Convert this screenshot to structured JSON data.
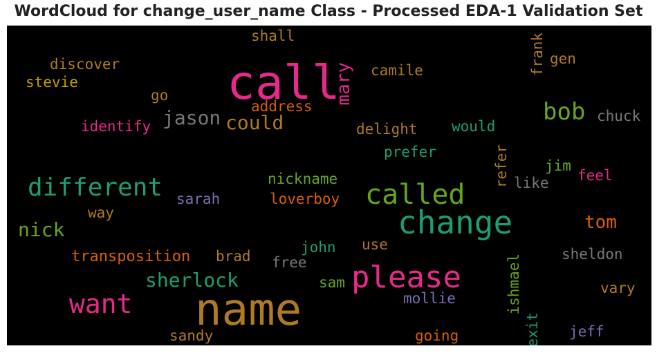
{
  "chart_data": {
    "type": "wordcloud",
    "title": "WordCloud for change_user_name Class - Processed EDA-1 Validation Set",
    "colors": {
      "background": "#000000",
      "pink": "#e7298a",
      "brown": "#b07a25",
      "green": "#1b9e77",
      "lime": "#66a61e",
      "orange": "#d95f02",
      "gray": "#777777",
      "purple": "#7570b3",
      "gold": "#c8a000"
    },
    "words": [
      {
        "text": "call",
        "color": "#e7298a",
        "orientation": "horizontal"
      },
      {
        "text": "name",
        "color": "#b07a25",
        "orientation": "horizontal"
      },
      {
        "text": "change",
        "color": "#1b9e77",
        "orientation": "horizontal"
      },
      {
        "text": "please",
        "color": "#e7298a",
        "orientation": "horizontal"
      },
      {
        "text": "called",
        "color": "#66a61e",
        "orientation": "horizontal"
      },
      {
        "text": "different",
        "color": "#1b9e77",
        "orientation": "horizontal"
      },
      {
        "text": "want",
        "color": "#e7298a",
        "orientation": "horizontal"
      },
      {
        "text": "bob",
        "color": "#66a61e",
        "orientation": "horizontal"
      },
      {
        "text": "jason",
        "color": "#777777",
        "orientation": "horizontal"
      },
      {
        "text": "sherlock",
        "color": "#1b9e77",
        "orientation": "horizontal"
      },
      {
        "text": "could",
        "color": "#b07a25",
        "orientation": "horizontal"
      },
      {
        "text": "nick",
        "color": "#66a61e",
        "orientation": "horizontal"
      },
      {
        "text": "tom",
        "color": "#d95f02",
        "orientation": "horizontal"
      },
      {
        "text": "mary",
        "color": "#e7298a",
        "orientation": "vertical"
      },
      {
        "text": "transposition",
        "color": "#d95f02",
        "orientation": "horizontal"
      },
      {
        "text": "discover",
        "color": "#b07a25",
        "orientation": "horizontal"
      },
      {
        "text": "stevie",
        "color": "#c8a000",
        "orientation": "horizontal"
      },
      {
        "text": "shall",
        "color": "#b07a25",
        "orientation": "horizontal"
      },
      {
        "text": "camile",
        "color": "#b07a25",
        "orientation": "horizontal"
      },
      {
        "text": "frank",
        "color": "#b07a25",
        "orientation": "vertical"
      },
      {
        "text": "gen",
        "color": "#b07a25",
        "orientation": "horizontal"
      },
      {
        "text": "go",
        "color": "#b07a25",
        "orientation": "horizontal"
      },
      {
        "text": "address",
        "color": "#d95f02",
        "orientation": "horizontal"
      },
      {
        "text": "chuck",
        "color": "#777777",
        "orientation": "horizontal"
      },
      {
        "text": "identify",
        "color": "#e7298a",
        "orientation": "horizontal"
      },
      {
        "text": "delight",
        "color": "#b07a25",
        "orientation": "horizontal"
      },
      {
        "text": "would",
        "color": "#1b9e77",
        "orientation": "horizontal"
      },
      {
        "text": "prefer",
        "color": "#1b9e77",
        "orientation": "horizontal"
      },
      {
        "text": "refer",
        "color": "#b07a25",
        "orientation": "vertical"
      },
      {
        "text": "jim",
        "color": "#66a61e",
        "orientation": "horizontal"
      },
      {
        "text": "feel",
        "color": "#e7298a",
        "orientation": "horizontal"
      },
      {
        "text": "like",
        "color": "#777777",
        "orientation": "horizontal"
      },
      {
        "text": "nickname",
        "color": "#66a61e",
        "orientation": "horizontal"
      },
      {
        "text": "sarah",
        "color": "#7570b3",
        "orientation": "horizontal"
      },
      {
        "text": "loverboy",
        "color": "#d95f02",
        "orientation": "horizontal"
      },
      {
        "text": "way",
        "color": "#b07a25",
        "orientation": "horizontal"
      },
      {
        "text": "john",
        "color": "#1b9e77",
        "orientation": "horizontal"
      },
      {
        "text": "use",
        "color": "#b07a25",
        "orientation": "horizontal"
      },
      {
        "text": "brad",
        "color": "#b07a25",
        "orientation": "horizontal"
      },
      {
        "text": "free",
        "color": "#777777",
        "orientation": "horizontal"
      },
      {
        "text": "sheldon",
        "color": "#777777",
        "orientation": "horizontal"
      },
      {
        "text": "sam",
        "color": "#66a61e",
        "orientation": "horizontal"
      },
      {
        "text": "ishmael",
        "color": "#66a61e",
        "orientation": "vertical"
      },
      {
        "text": "vary",
        "color": "#b07a25",
        "orientation": "horizontal"
      },
      {
        "text": "mollie",
        "color": "#7570b3",
        "orientation": "horizontal"
      },
      {
        "text": "exit",
        "color": "#1b9e77",
        "orientation": "vertical"
      },
      {
        "text": "sandy",
        "color": "#b07a25",
        "orientation": "horizontal"
      },
      {
        "text": "going",
        "color": "#d95f02",
        "orientation": "horizontal"
      },
      {
        "text": "jeff",
        "color": "#7570b3",
        "orientation": "horizontal"
      }
    ]
  }
}
